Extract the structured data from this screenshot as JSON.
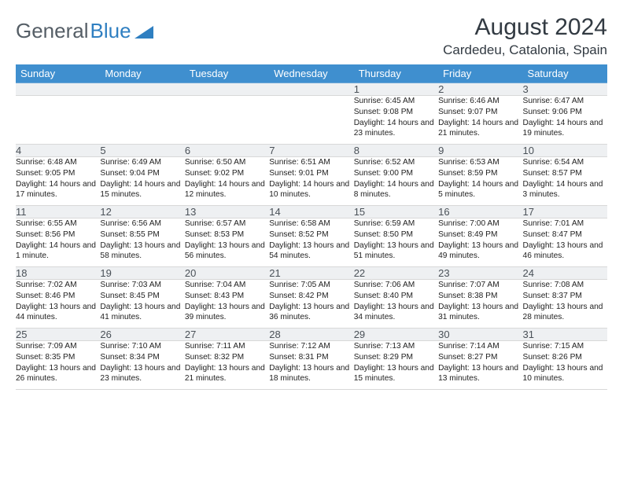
{
  "brand": {
    "part1": "General",
    "part2": "Blue",
    "logo_color": "#2f7fc1"
  },
  "title": "August 2024",
  "location": "Cardedeu, Catalonia, Spain",
  "colors": {
    "header_bg": "#3f8fcf",
    "header_text": "#ffffff",
    "daynum_bg": "#eef0f2",
    "daynum_text": "#4a5158",
    "rule": "#6fa7d6",
    "body_text": "#222222"
  },
  "weekdays": [
    "Sunday",
    "Monday",
    "Tuesday",
    "Wednesday",
    "Thursday",
    "Friday",
    "Saturday"
  ],
  "weeks": [
    [
      null,
      null,
      null,
      null,
      {
        "n": "1",
        "sr": "6:45 AM",
        "ss": "9:08 PM",
        "dl": "14 hours and 23 minutes."
      },
      {
        "n": "2",
        "sr": "6:46 AM",
        "ss": "9:07 PM",
        "dl": "14 hours and 21 minutes."
      },
      {
        "n": "3",
        "sr": "6:47 AM",
        "ss": "9:06 PM",
        "dl": "14 hours and 19 minutes."
      }
    ],
    [
      {
        "n": "4",
        "sr": "6:48 AM",
        "ss": "9:05 PM",
        "dl": "14 hours and 17 minutes."
      },
      {
        "n": "5",
        "sr": "6:49 AM",
        "ss": "9:04 PM",
        "dl": "14 hours and 15 minutes."
      },
      {
        "n": "6",
        "sr": "6:50 AM",
        "ss": "9:02 PM",
        "dl": "14 hours and 12 minutes."
      },
      {
        "n": "7",
        "sr": "6:51 AM",
        "ss": "9:01 PM",
        "dl": "14 hours and 10 minutes."
      },
      {
        "n": "8",
        "sr": "6:52 AM",
        "ss": "9:00 PM",
        "dl": "14 hours and 8 minutes."
      },
      {
        "n": "9",
        "sr": "6:53 AM",
        "ss": "8:59 PM",
        "dl": "14 hours and 5 minutes."
      },
      {
        "n": "10",
        "sr": "6:54 AM",
        "ss": "8:57 PM",
        "dl": "14 hours and 3 minutes."
      }
    ],
    [
      {
        "n": "11",
        "sr": "6:55 AM",
        "ss": "8:56 PM",
        "dl": "14 hours and 1 minute."
      },
      {
        "n": "12",
        "sr": "6:56 AM",
        "ss": "8:55 PM",
        "dl": "13 hours and 58 minutes."
      },
      {
        "n": "13",
        "sr": "6:57 AM",
        "ss": "8:53 PM",
        "dl": "13 hours and 56 minutes."
      },
      {
        "n": "14",
        "sr": "6:58 AM",
        "ss": "8:52 PM",
        "dl": "13 hours and 54 minutes."
      },
      {
        "n": "15",
        "sr": "6:59 AM",
        "ss": "8:50 PM",
        "dl": "13 hours and 51 minutes."
      },
      {
        "n": "16",
        "sr": "7:00 AM",
        "ss": "8:49 PM",
        "dl": "13 hours and 49 minutes."
      },
      {
        "n": "17",
        "sr": "7:01 AM",
        "ss": "8:47 PM",
        "dl": "13 hours and 46 minutes."
      }
    ],
    [
      {
        "n": "18",
        "sr": "7:02 AM",
        "ss": "8:46 PM",
        "dl": "13 hours and 44 minutes."
      },
      {
        "n": "19",
        "sr": "7:03 AM",
        "ss": "8:45 PM",
        "dl": "13 hours and 41 minutes."
      },
      {
        "n": "20",
        "sr": "7:04 AM",
        "ss": "8:43 PM",
        "dl": "13 hours and 39 minutes."
      },
      {
        "n": "21",
        "sr": "7:05 AM",
        "ss": "8:42 PM",
        "dl": "13 hours and 36 minutes."
      },
      {
        "n": "22",
        "sr": "7:06 AM",
        "ss": "8:40 PM",
        "dl": "13 hours and 34 minutes."
      },
      {
        "n": "23",
        "sr": "7:07 AM",
        "ss": "8:38 PM",
        "dl": "13 hours and 31 minutes."
      },
      {
        "n": "24",
        "sr": "7:08 AM",
        "ss": "8:37 PM",
        "dl": "13 hours and 28 minutes."
      }
    ],
    [
      {
        "n": "25",
        "sr": "7:09 AM",
        "ss": "8:35 PM",
        "dl": "13 hours and 26 minutes."
      },
      {
        "n": "26",
        "sr": "7:10 AM",
        "ss": "8:34 PM",
        "dl": "13 hours and 23 minutes."
      },
      {
        "n": "27",
        "sr": "7:11 AM",
        "ss": "8:32 PM",
        "dl": "13 hours and 21 minutes."
      },
      {
        "n": "28",
        "sr": "7:12 AM",
        "ss": "8:31 PM",
        "dl": "13 hours and 18 minutes."
      },
      {
        "n": "29",
        "sr": "7:13 AM",
        "ss": "8:29 PM",
        "dl": "13 hours and 15 minutes."
      },
      {
        "n": "30",
        "sr": "7:14 AM",
        "ss": "8:27 PM",
        "dl": "13 hours and 13 minutes."
      },
      {
        "n": "31",
        "sr": "7:15 AM",
        "ss": "8:26 PM",
        "dl": "13 hours and 10 minutes."
      }
    ]
  ],
  "labels": {
    "sunrise": "Sunrise:",
    "sunset": "Sunset:",
    "daylight": "Daylight:"
  }
}
